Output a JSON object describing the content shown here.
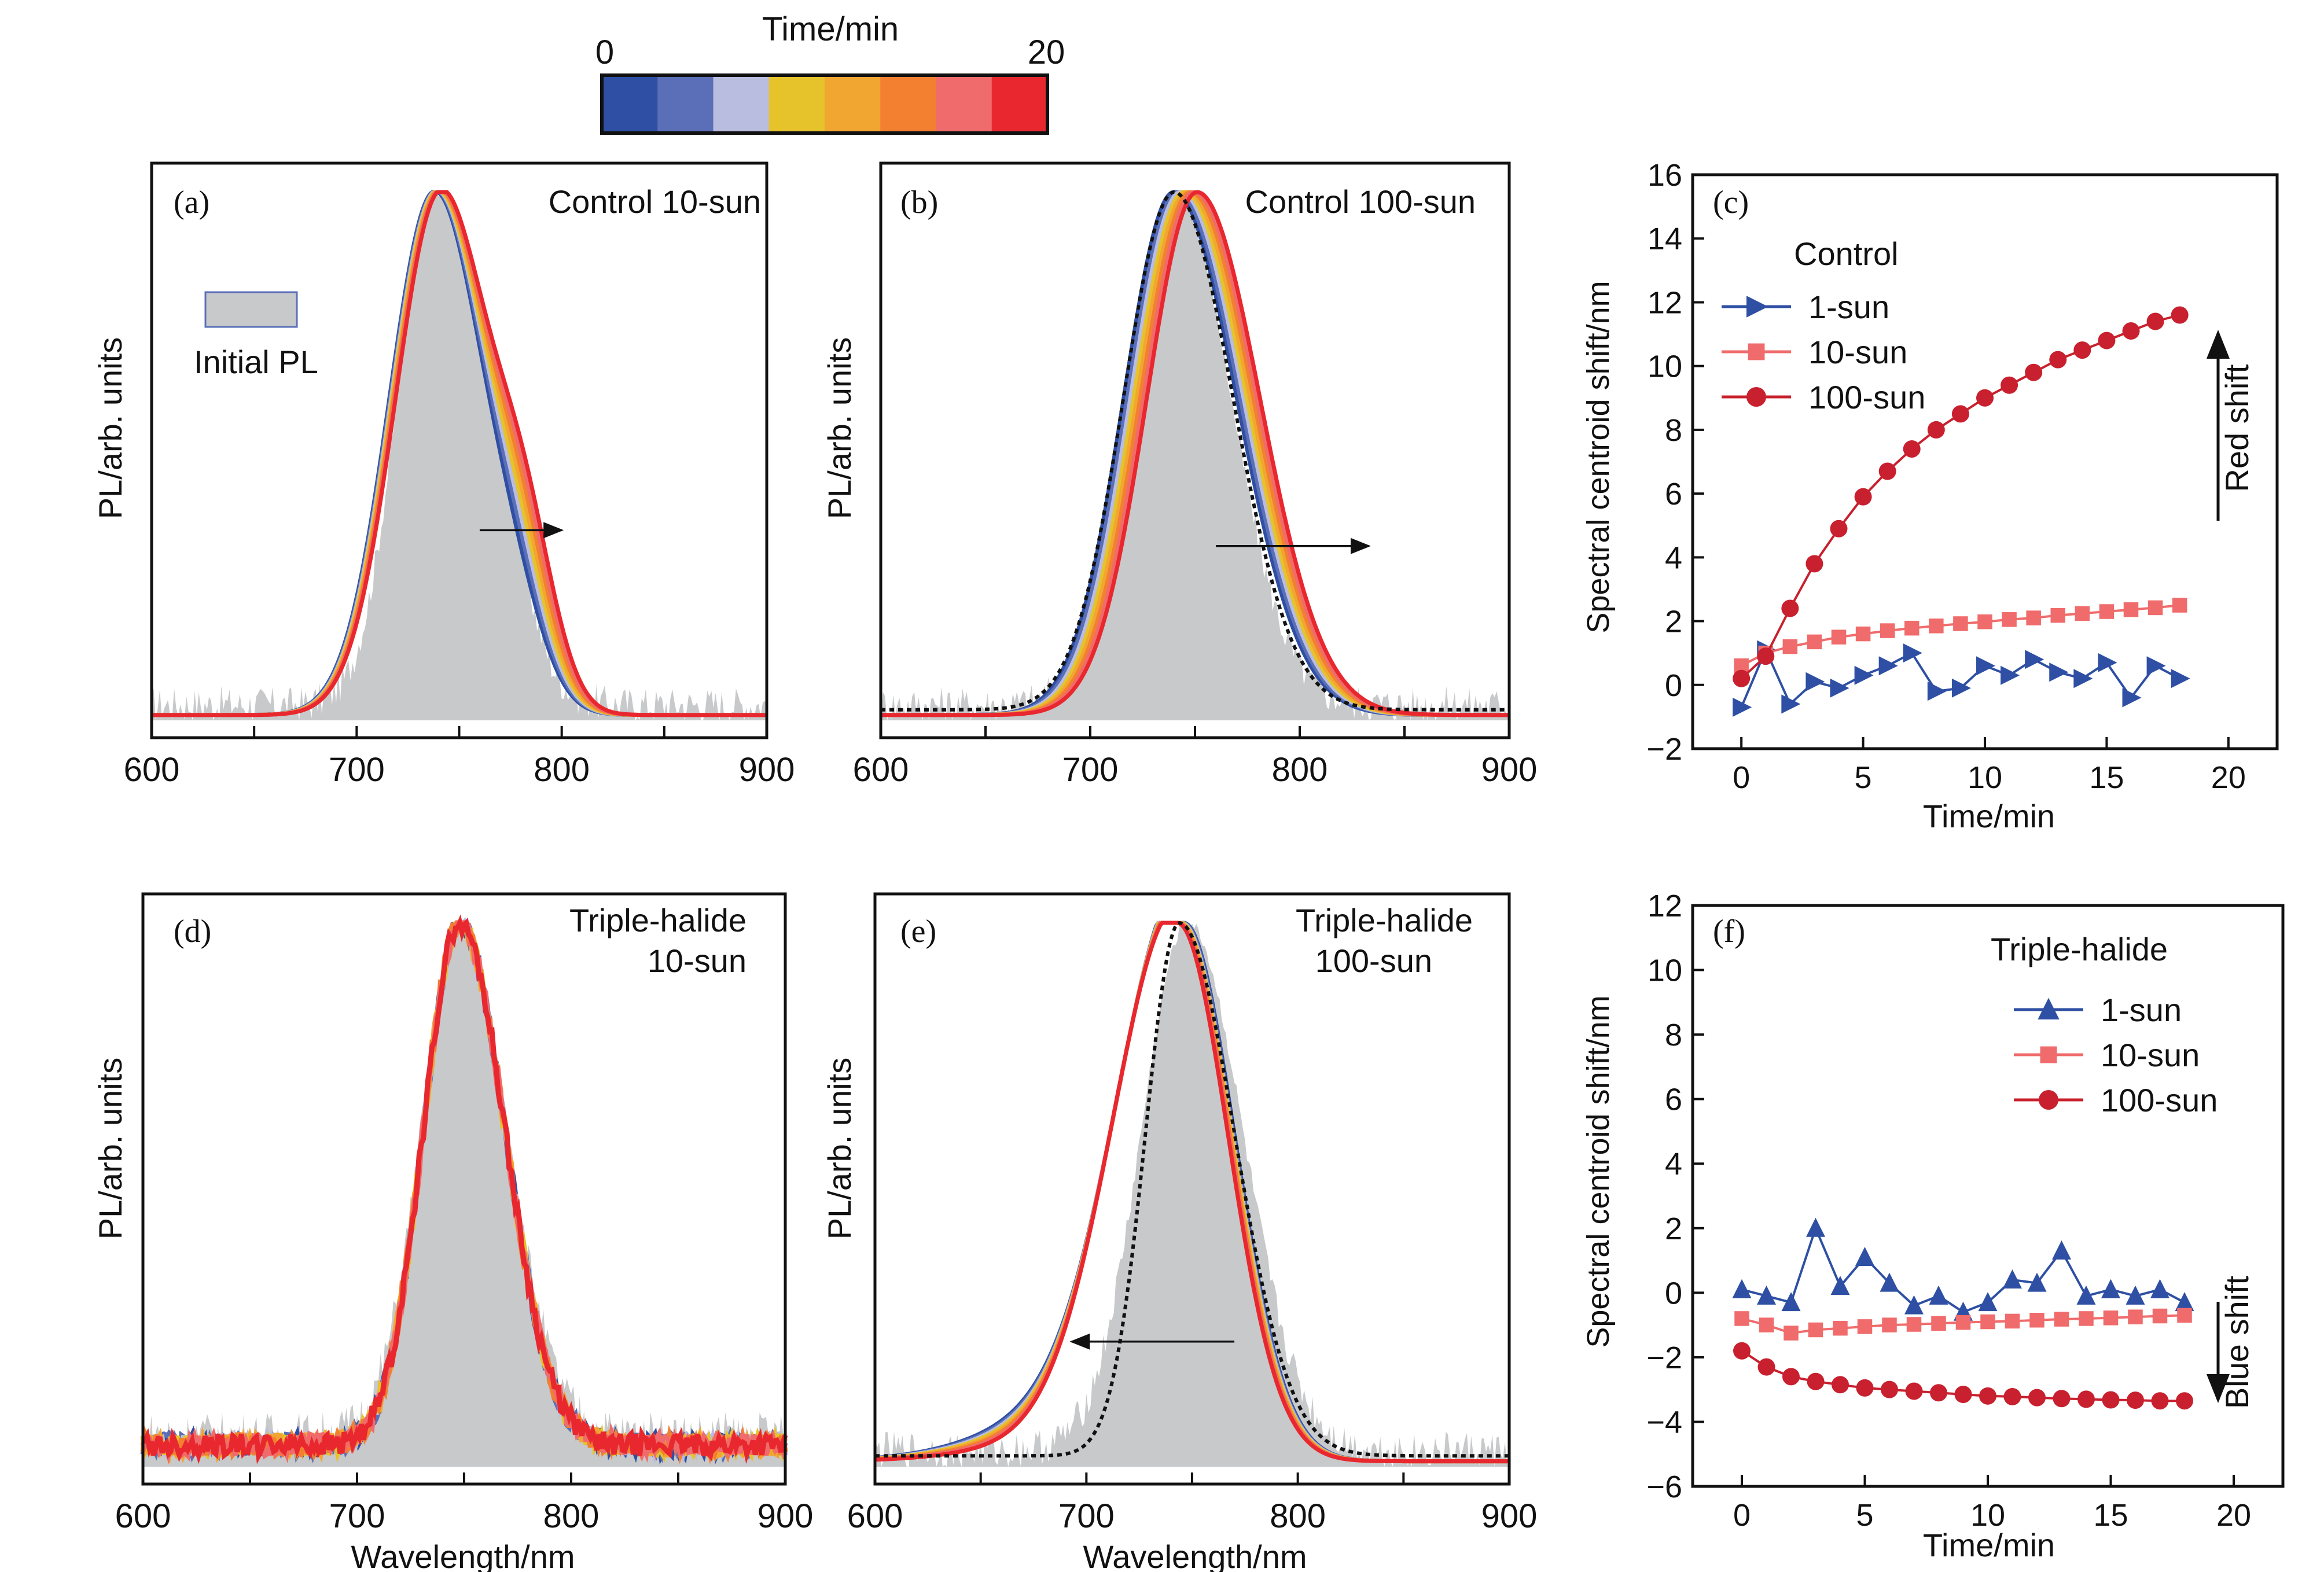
{
  "colorbar": {
    "title": "Time/min",
    "min_label": "0",
    "max_label": "20",
    "colors": [
      "#2e4fa3",
      "#5a6fb8",
      "#b9bde0",
      "#e6c32a",
      "#f2a632",
      "#f28030",
      "#f06b6b",
      "#e8282e"
    ]
  },
  "shared": {
    "ylabel_spectra": "PL/arb. units",
    "xlabel_spectra": "Wavelength/nm",
    "xlabel_time": "Time/min",
    "ylabel_time": "Spectral centroid shift/nm",
    "initial_pl_legend": "Initial PL",
    "initial_color": "#c8c9ca",
    "dotted_color": "#111111"
  },
  "panels": {
    "a": {
      "label": "(a)",
      "title": "Control 10-sun"
    },
    "b": {
      "label": "(b)",
      "title": "Control 100-sun"
    },
    "c": {
      "label": "(c)",
      "legend_title": "Control",
      "annotation": "Red shift"
    },
    "d": {
      "label": "(d)",
      "title_line1": "Triple-halide",
      "title_line2": "10-sun"
    },
    "e": {
      "label": "(e)",
      "title_line1": "Triple-halide",
      "title_line2": "100-sun"
    },
    "f": {
      "label": "(f)",
      "legend_title": "Triple-halide",
      "annotation": "Blue shift"
    }
  },
  "chart_data": [
    {
      "id": "a",
      "type": "line",
      "title": "Control 10-sun",
      "xlabel": "Wavelength/nm",
      "ylabel": "PL/arb. units",
      "xlim": [
        600,
        900
      ],
      "xticks": [
        600,
        700,
        800,
        900
      ],
      "initial_pl": {
        "peak": 738,
        "width_left": 18,
        "width_right": 24,
        "shoulder_pos": 772,
        "shoulder_amp": 0.12,
        "shoulder_width": 12,
        "noise": 0.05
      },
      "curves": {
        "peak_start": 738,
        "peak_end": 741,
        "width_left": 22,
        "width_right": 24,
        "shoulder_pos": 778,
        "shoulder_amp": 0.27,
        "shoulder_width": 14,
        "shoulder_shift": 7,
        "count": 8
      },
      "arrow": {
        "from": 760,
        "to": 800,
        "y": 0.36
      }
    },
    {
      "id": "b",
      "type": "line",
      "title": "Control 100-sun",
      "xlabel": "Wavelength/nm",
      "ylabel": "PL/arb. units",
      "xlim": [
        600,
        900
      ],
      "xticks": [
        600,
        700,
        800,
        900
      ],
      "initial_pl": {
        "peak": 741,
        "width_left": 22,
        "width_right": 26,
        "noise": 0.05
      },
      "curves": {
        "peak_start": 740,
        "peak_end": 751,
        "width_left": 24,
        "width_right": 30,
        "count": 8
      },
      "dotted": {
        "peak": 740,
        "width_left": 24,
        "width_right": 28
      },
      "arrow": {
        "from": 760,
        "to": 833,
        "y": 0.33
      }
    },
    {
      "id": "c",
      "type": "line",
      "xlabel": "Time/min",
      "ylabel": "Spectral centroid shift/nm",
      "xlim": [
        -2,
        22
      ],
      "ylim": [
        -2,
        16
      ],
      "xticks": [
        0,
        5,
        10,
        15,
        20
      ],
      "yticks": [
        -2,
        0,
        2,
        4,
        6,
        8,
        10,
        12,
        14,
        16
      ],
      "legend_title": "Control",
      "series": [
        {
          "name": "1-sun",
          "marker": "triangle-right",
          "color": "#2e4fa3",
          "x": [
            0,
            1,
            2,
            3,
            4,
            5,
            6,
            7,
            8,
            9,
            10,
            11,
            12,
            13,
            14,
            15,
            16,
            17,
            18
          ],
          "y": [
            -0.7,
            1.1,
            -0.6,
            0.1,
            -0.1,
            0.3,
            0.6,
            1.0,
            -0.2,
            -0.1,
            0.6,
            0.3,
            0.8,
            0.4,
            0.2,
            0.7,
            -0.4,
            0.6,
            0.2
          ]
        },
        {
          "name": "10-sun",
          "marker": "square",
          "color": "#f06b6b",
          "x": [
            0,
            1,
            2,
            3,
            4,
            5,
            6,
            7,
            8,
            9,
            10,
            11,
            12,
            13,
            14,
            15,
            16,
            17,
            18
          ],
          "y": [
            0.6,
            1.0,
            1.2,
            1.35,
            1.5,
            1.6,
            1.7,
            1.78,
            1.85,
            1.92,
            1.98,
            2.05,
            2.1,
            2.18,
            2.24,
            2.3,
            2.36,
            2.42,
            2.5
          ]
        },
        {
          "name": "100-sun",
          "marker": "circle",
          "color": "#c8202e",
          "x": [
            0,
            1,
            2,
            3,
            4,
            5,
            6,
            7,
            8,
            9,
            10,
            11,
            12,
            13,
            14,
            15,
            16,
            17,
            18
          ],
          "y": [
            0.2,
            0.9,
            2.4,
            3.8,
            4.9,
            5.9,
            6.7,
            7.4,
            8.0,
            8.5,
            9.0,
            9.4,
            9.8,
            10.2,
            10.5,
            10.8,
            11.1,
            11.4,
            11.6
          ]
        }
      ],
      "annotation": "Red shift"
    },
    {
      "id": "d",
      "type": "line",
      "title": "Triple-halide 10-sun",
      "xlabel": "Wavelength/nm",
      "ylabel": "PL/arb. units",
      "xlim": [
        600,
        900
      ],
      "xticks": [
        600,
        700,
        800,
        900
      ],
      "initial_pl": {
        "peak": 748,
        "width_left": 18,
        "width_right": 22,
        "noise": 0.06,
        "offset": 0.06
      },
      "curves": {
        "peak_start": 748,
        "peak_end": 748,
        "width_left": 17,
        "width_right": 21,
        "count": 8,
        "offset": 0.04,
        "jitter": 0.02
      }
    },
    {
      "id": "e",
      "type": "line",
      "title": "Triple-halide 100-sun",
      "xlabel": "Wavelength/nm",
      "ylabel": "PL/arb. units",
      "xlim": [
        600,
        900
      ],
      "xticks": [
        600,
        700,
        800,
        900
      ],
      "initial_pl": {
        "peak": 748,
        "width_left": 22,
        "width_right": 26,
        "noise": 0.05
      },
      "curves": {
        "peak_start": 746,
        "peak_end": 743,
        "width_left": 30,
        "width_right": 24,
        "count": 8,
        "tail_left": 0.1
      },
      "dotted": {
        "peak": 744,
        "width_left": 16,
        "width_right": 26
      },
      "arrow": {
        "from": 770,
        "to": 693,
        "y": 0.23
      }
    },
    {
      "id": "f",
      "type": "line",
      "xlabel": "Time/min",
      "ylabel": "Spectral centroid shift/nm",
      "xlim": [
        -2,
        22
      ],
      "ylim": [
        -6,
        12
      ],
      "xticks": [
        0,
        5,
        10,
        15,
        20
      ],
      "yticks": [
        -6,
        -4,
        -2,
        0,
        2,
        4,
        6,
        8,
        10,
        12
      ],
      "legend_title": "Triple-halide",
      "series": [
        {
          "name": "1-sun",
          "marker": "triangle-up",
          "color": "#2e4fa3",
          "x": [
            0,
            1,
            2,
            3,
            4,
            5,
            6,
            7,
            8,
            9,
            10,
            11,
            12,
            13,
            14,
            15,
            16,
            17,
            18
          ],
          "y": [
            0.1,
            -0.1,
            -0.3,
            2.0,
            0.2,
            1.1,
            0.3,
            -0.4,
            -0.1,
            -0.6,
            -0.3,
            0.4,
            0.3,
            1.3,
            -0.1,
            0.1,
            -0.1,
            0.1,
            -0.3
          ]
        },
        {
          "name": "10-sun",
          "marker": "square",
          "color": "#f06b6b",
          "x": [
            0,
            1,
            2,
            3,
            4,
            5,
            6,
            7,
            8,
            9,
            10,
            11,
            12,
            13,
            14,
            15,
            16,
            17,
            18
          ],
          "y": [
            -0.8,
            -1.0,
            -1.25,
            -1.15,
            -1.1,
            -1.05,
            -1.0,
            -0.98,
            -0.95,
            -0.92,
            -0.9,
            -0.88,
            -0.85,
            -0.82,
            -0.8,
            -0.78,
            -0.75,
            -0.72,
            -0.7
          ]
        },
        {
          "name": "100-sun",
          "marker": "circle",
          "color": "#c8202e",
          "x": [
            0,
            1,
            2,
            3,
            4,
            5,
            6,
            7,
            8,
            9,
            10,
            11,
            12,
            13,
            14,
            15,
            16,
            17,
            18
          ],
          "y": [
            -1.8,
            -2.3,
            -2.6,
            -2.75,
            -2.85,
            -2.95,
            -3.0,
            -3.05,
            -3.1,
            -3.15,
            -3.2,
            -3.22,
            -3.25,
            -3.28,
            -3.3,
            -3.32,
            -3.33,
            -3.35,
            -3.35
          ]
        }
      ],
      "annotation": "Blue shift"
    }
  ]
}
